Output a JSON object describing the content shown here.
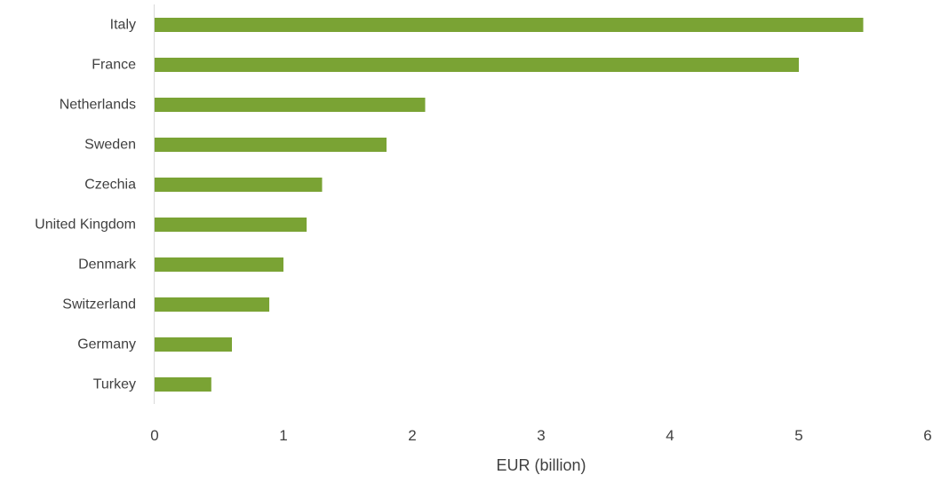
{
  "chart_data": {
    "type": "bar",
    "orientation": "horizontal",
    "categories": [
      "Italy",
      "France",
      "Netherlands",
      "Sweden",
      "Czechia",
      "United Kingdom",
      "Denmark",
      "Switzerland",
      "Germany",
      "Turkey"
    ],
    "values": [
      5.5,
      5.0,
      2.1,
      1.8,
      1.3,
      1.18,
      1.0,
      0.89,
      0.6,
      0.44
    ],
    "xlabel": "EUR (billion)",
    "ylabel": "",
    "xlim": [
      0,
      6
    ],
    "xticks": [
      0,
      1,
      2,
      3,
      4,
      5,
      6
    ],
    "grid": false,
    "bar_color": "#7aa334",
    "axis_color": "#d9d9d9"
  }
}
